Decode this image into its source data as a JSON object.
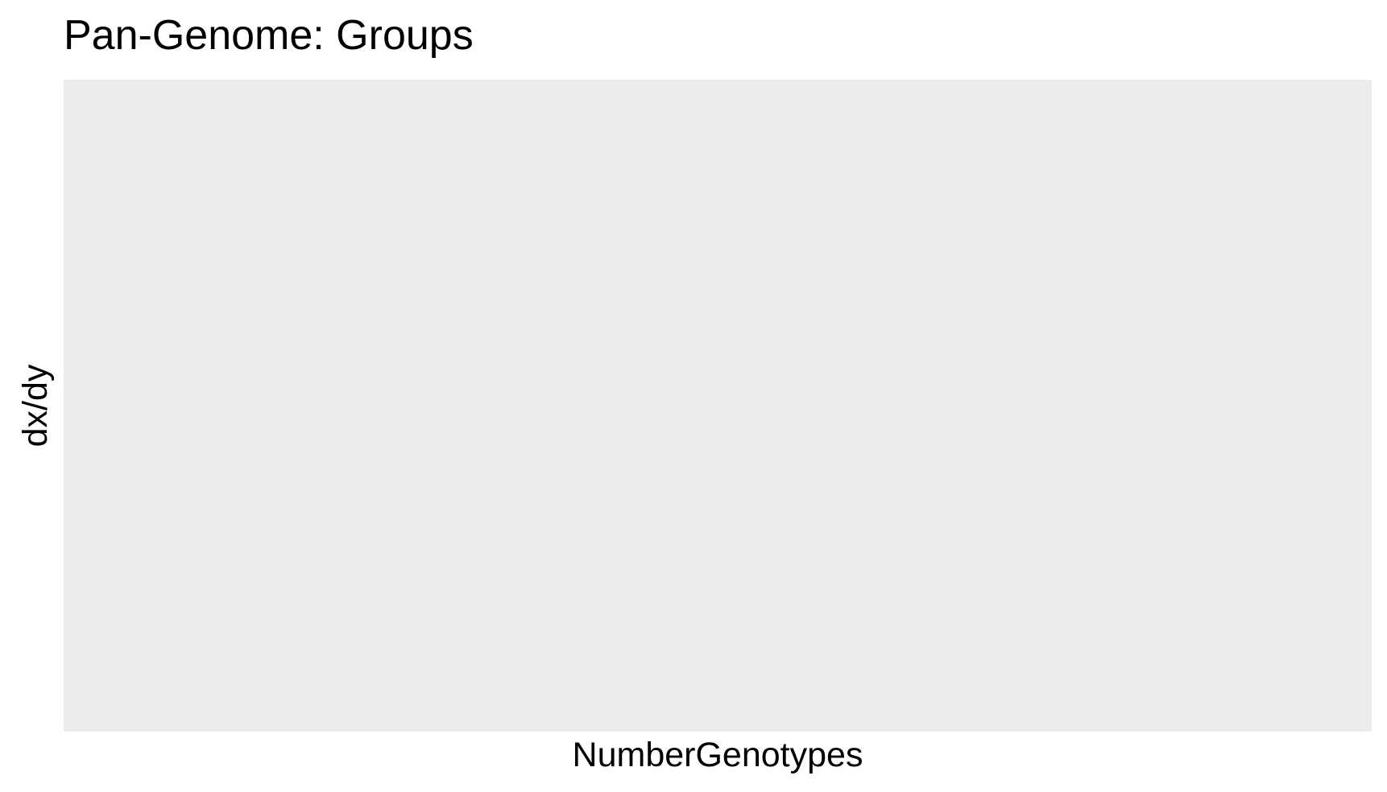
{
  "chart_data": {
    "type": "scatter",
    "title": "Pan-Genome: Groups",
    "xlabel": "NumberGenotypes",
    "ylabel": "dx/dy",
    "series": [],
    "grid": false,
    "legend": "none",
    "panel_color": "#ebebeb",
    "background_color": "#ffffff"
  }
}
